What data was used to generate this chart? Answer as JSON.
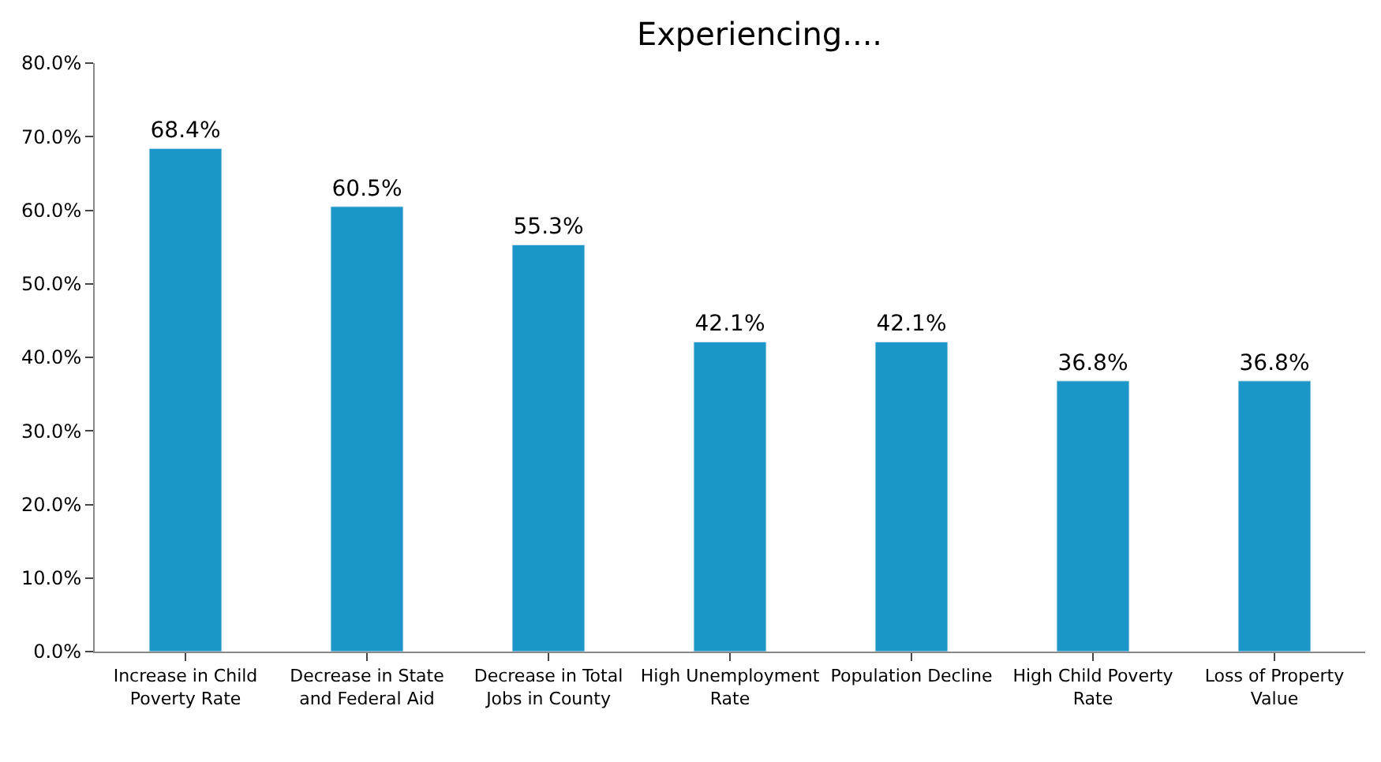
{
  "chart_data": {
    "type": "bar",
    "title": "Experiencing....",
    "categories": [
      "Increase in Child Poverty Rate",
      "Decrease in State and Federal Aid",
      "Decrease in Total Jobs in County",
      "High Unemployment Rate",
      "Population Decline",
      "High Child Poverty Rate",
      "Loss of Property Value"
    ],
    "values": [
      68.4,
      60.5,
      55.3,
      42.1,
      42.1,
      36.8,
      36.8
    ],
    "value_labels": [
      "68.4%",
      "60.5%",
      "55.3%",
      "42.1%",
      "42.1%",
      "36.8%",
      "36.8%"
    ],
    "color": "#1a96c8",
    "ylim": [
      0,
      80
    ],
    "yticks": [
      {
        "value": 0,
        "label": "0.0%"
      },
      {
        "value": 10,
        "label": "10.0%"
      },
      {
        "value": 20,
        "label": "20.0%"
      },
      {
        "value": 30,
        "label": "30.0%"
      },
      {
        "value": 40,
        "label": "40.0%"
      },
      {
        "value": 50,
        "label": "50.0%"
      },
      {
        "value": 60,
        "label": "60.0%"
      },
      {
        "value": 70,
        "label": "70.0%"
      },
      {
        "value": 80,
        "label": "80.0%"
      }
    ],
    "grid": false,
    "legend": false
  }
}
